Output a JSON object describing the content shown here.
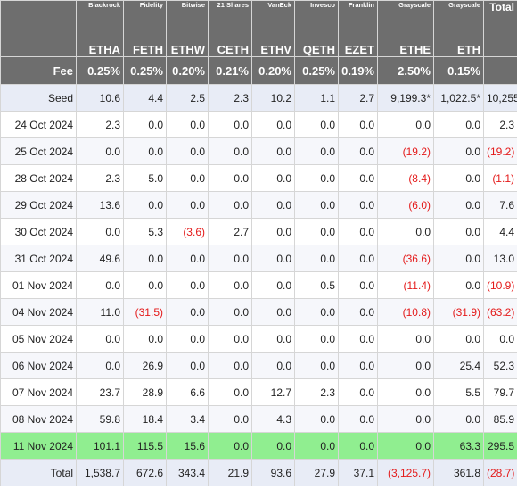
{
  "header": {
    "issuers": [
      "Blackrock",
      "Fidelity",
      "Bitwise",
      "21 Shares",
      "VanEck",
      "Invesco",
      "Franklin",
      "Grayscale",
      "Grayscale"
    ],
    "total_label": "Total",
    "tickers": [
      "ETHA",
      "FETH",
      "ETHW",
      "CETH",
      "ETHV",
      "QETH",
      "EZET",
      "ETHE",
      "ETH"
    ]
  },
  "fee_row": {
    "label": "Fee",
    "values": [
      "0.25%",
      "0.25%",
      "0.20%",
      "0.21%",
      "0.20%",
      "0.25%",
      "0.19%",
      "2.50%",
      "0.15%"
    ]
  },
  "rows": [
    {
      "label": "Seed",
      "values": [
        "10.6",
        "4.4",
        "2.5",
        "2.3",
        "10.2",
        "1.1",
        "2.7",
        "9,199.3*",
        "1,022.5*"
      ],
      "total": "10,255"
    },
    {
      "label": "24 Oct 2024",
      "values": [
        "2.3",
        "0.0",
        "0.0",
        "0.0",
        "0.0",
        "0.0",
        "0.0",
        "0.0",
        "0.0"
      ],
      "total": "2.3"
    },
    {
      "label": "25 Oct 2024",
      "values": [
        "0.0",
        "0.0",
        "0.0",
        "0.0",
        "0.0",
        "0.0",
        "0.0",
        "(19.2)",
        "0.0"
      ],
      "total": "(19.2)"
    },
    {
      "label": "28 Oct 2024",
      "values": [
        "2.3",
        "5.0",
        "0.0",
        "0.0",
        "0.0",
        "0.0",
        "0.0",
        "(8.4)",
        "0.0"
      ],
      "total": "(1.1)"
    },
    {
      "label": "29 Oct 2024",
      "values": [
        "13.6",
        "0.0",
        "0.0",
        "0.0",
        "0.0",
        "0.0",
        "0.0",
        "(6.0)",
        "0.0"
      ],
      "total": "7.6"
    },
    {
      "label": "30 Oct 2024",
      "values": [
        "0.0",
        "5.3",
        "(3.6)",
        "2.7",
        "0.0",
        "0.0",
        "0.0",
        "0.0",
        "0.0"
      ],
      "total": "4.4"
    },
    {
      "label": "31 Oct 2024",
      "values": [
        "49.6",
        "0.0",
        "0.0",
        "0.0",
        "0.0",
        "0.0",
        "0.0",
        "(36.6)",
        "0.0"
      ],
      "total": "13.0"
    },
    {
      "label": "01 Nov 2024",
      "values": [
        "0.0",
        "0.0",
        "0.0",
        "0.0",
        "0.0",
        "0.5",
        "0.0",
        "(11.4)",
        "0.0"
      ],
      "total": "(10.9)"
    },
    {
      "label": "04 Nov 2024",
      "values": [
        "11.0",
        "(31.5)",
        "0.0",
        "0.0",
        "0.0",
        "0.0",
        "0.0",
        "(10.8)",
        "(31.9)"
      ],
      "total": "(63.2)"
    },
    {
      "label": "05 Nov 2024",
      "values": [
        "0.0",
        "0.0",
        "0.0",
        "0.0",
        "0.0",
        "0.0",
        "0.0",
        "0.0",
        "0.0"
      ],
      "total": "0.0"
    },
    {
      "label": "06 Nov 2024",
      "values": [
        "0.0",
        "26.9",
        "0.0",
        "0.0",
        "0.0",
        "0.0",
        "0.0",
        "0.0",
        "25.4"
      ],
      "total": "52.3"
    },
    {
      "label": "07 Nov 2024",
      "values": [
        "23.7",
        "28.9",
        "6.6",
        "0.0",
        "12.7",
        "2.3",
        "0.0",
        "0.0",
        "5.5"
      ],
      "total": "79.7"
    },
    {
      "label": "08 Nov 2024",
      "values": [
        "59.8",
        "18.4",
        "3.4",
        "0.0",
        "4.3",
        "0.0",
        "0.0",
        "0.0",
        "0.0"
      ],
      "total": "85.9"
    },
    {
      "label": "11 Nov 2024",
      "values": [
        "101.1",
        "115.5",
        "15.6",
        "0.0",
        "0.0",
        "0.0",
        "0.0",
        "0.0",
        "63.3"
      ],
      "total": "295.5"
    },
    {
      "label": "Total",
      "values": [
        "1,538.7",
        "672.6",
        "343.4",
        "21.9",
        "93.6",
        "27.9",
        "37.1",
        "(3,125.7)",
        "361.8"
      ],
      "total": "(28.7)"
    }
  ],
  "colors": {
    "header_bg": "#6e6e6e",
    "header_text": "#ffffff",
    "negative_text": "#e41a1a",
    "highlight_row_bg": "#90ee90",
    "seed_total_bg": "#e8ecf6",
    "stripe_bg": "#f6f7fb"
  }
}
